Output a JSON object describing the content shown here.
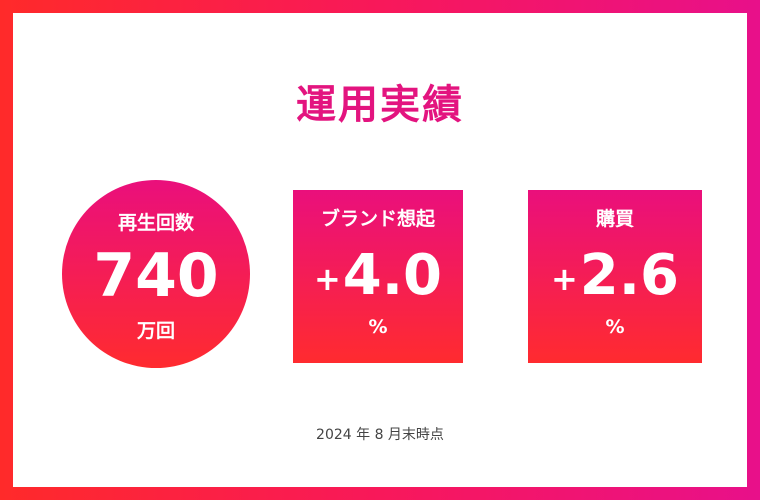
{
  "title": "運用実績",
  "stats": [
    {
      "label": "再生回数",
      "value": "740",
      "unit": "万回"
    },
    {
      "label": "ブランド想起",
      "sign": "+",
      "value": "4.0",
      "unit": "%"
    },
    {
      "label": "購買",
      "sign": "+",
      "value": "2.6",
      "unit": "%"
    }
  ],
  "footnote": "2024 年 8 月末時点"
}
